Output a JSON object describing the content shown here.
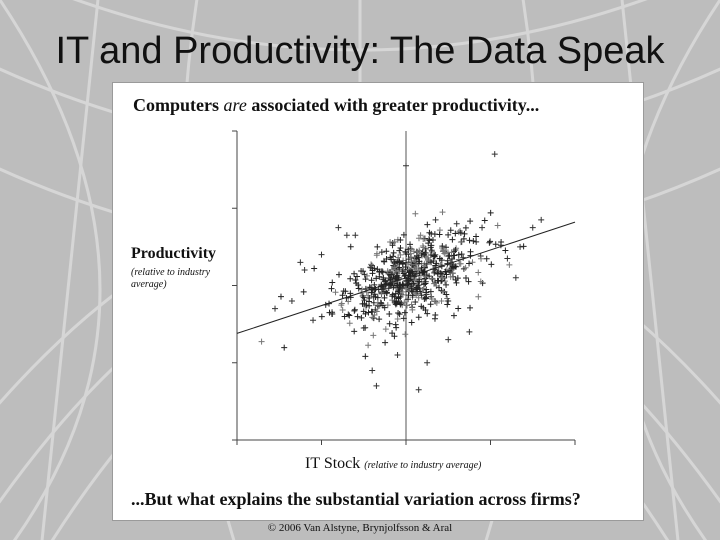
{
  "slide": {
    "title": "IT and Productivity: The Data Speak",
    "headline_pre": "Computers ",
    "headline_em": "are",
    "headline_post": " associated with greater productivity...",
    "question": "...But what explains the substantial variation across firms?",
    "copyright": "© 2006 Van Alstyne, Brynjolfsson & Aral"
  },
  "chart_data": {
    "type": "scatter",
    "ylabel": "Productivity",
    "ylabel_sub": "(relative to industry average)",
    "xlabel": "IT Stock",
    "xlabel_sub": "(relative to industry average)",
    "xlim": [
      -4,
      4
    ],
    "ylim": [
      -4,
      4
    ],
    "reference_lines": {
      "x": 0,
      "y": null
    },
    "fit_line": {
      "slope": 0.36,
      "intercept": 0.2
    },
    "marker": "+",
    "series": [
      {
        "points": [
          [
            2.1,
            3.4
          ],
          [
            0.0,
            3.1
          ],
          [
            3.2,
            1.7
          ],
          [
            1.8,
            1.5
          ],
          [
            -1.6,
            1.5
          ],
          [
            -1.2,
            1.3
          ],
          [
            2.7,
            1.0
          ],
          [
            -2.0,
            0.8
          ],
          [
            -2.4,
            0.4
          ],
          [
            -2.7,
            -0.4
          ],
          [
            -3.1,
            -0.6
          ],
          [
            -2.2,
            -0.9
          ],
          [
            -1.0,
            -1.1
          ],
          [
            -0.2,
            -1.8
          ],
          [
            -0.8,
            -2.2
          ],
          [
            0.5,
            -2.0
          ],
          [
            1.5,
            -1.2
          ],
          [
            -0.7,
            -2.6
          ],
          [
            0.3,
            -2.7
          ],
          [
            2.6,
            0.2
          ],
          [
            -1.9,
            -0.5
          ],
          [
            -2.5,
            0.6
          ],
          [
            3.0,
            1.5
          ],
          [
            -1.4,
            1.3
          ],
          [
            1.2,
            1.6
          ],
          [
            0.7,
            1.7
          ],
          [
            2.4,
            0.7
          ],
          [
            1.0,
            -1.4
          ]
        ]
      }
    ]
  }
}
